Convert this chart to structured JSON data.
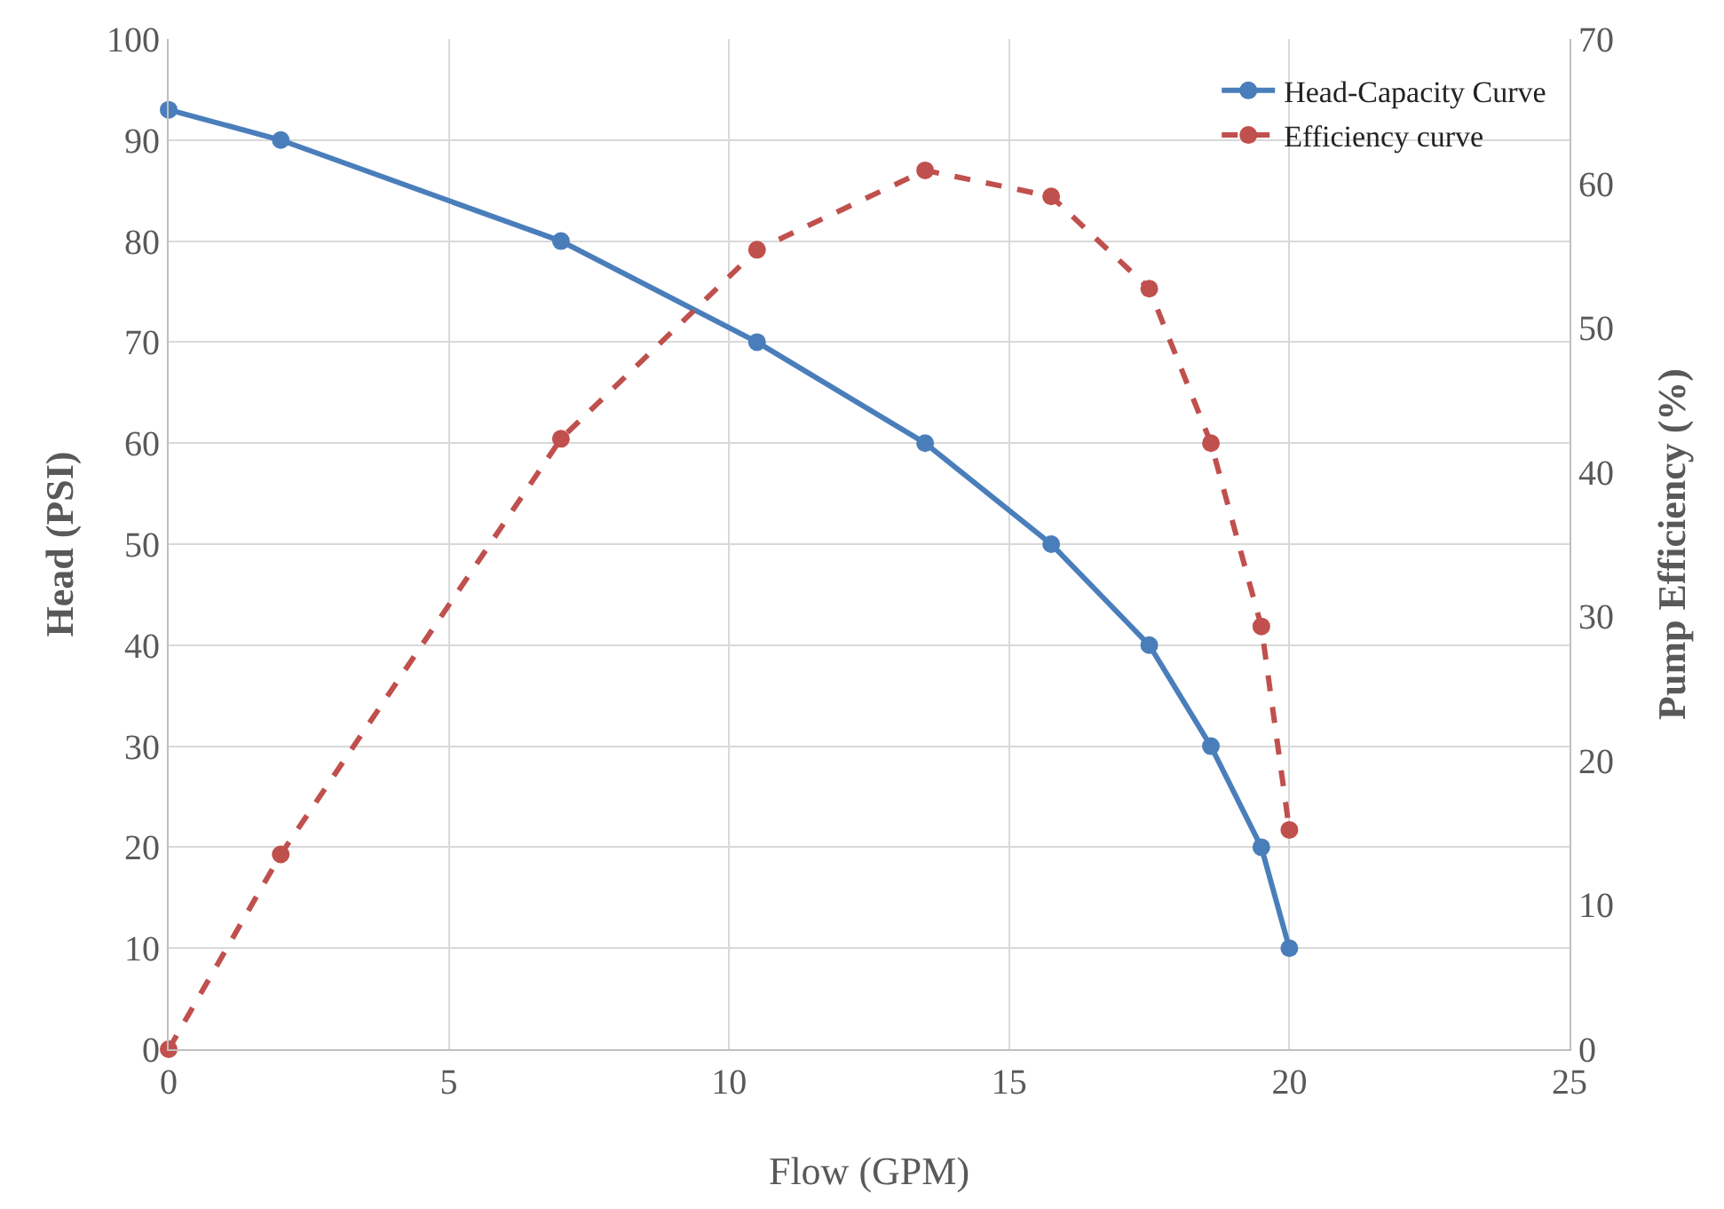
{
  "chart_data": {
    "type": "line",
    "xlabel": "Flow (GPM)",
    "ylabel": "Head (PSI)",
    "y2label": "Pump Efficiency (%)",
    "x": [
      0,
      2,
      7,
      10.5,
      13.5,
      15.75,
      17.5,
      18.6,
      19.5,
      20
    ],
    "series": [
      {
        "name": "Head-Capacity Curve",
        "color": "#4a7ebb",
        "line_style": "solid",
        "values": [
          93,
          90,
          80,
          70,
          60,
          50,
          40,
          30,
          20,
          10
        ]
      },
      {
        "name": "Efficiency curve",
        "color": "#c0504d",
        "line_style": "dashed",
        "axis": "y2",
        "values": [
          0,
          13.5,
          42.3,
          55.4,
          60.9,
          59.1,
          52.7,
          42,
          29.3,
          15.2
        ]
      }
    ],
    "xlim": [
      0,
      25
    ],
    "xticks": [
      0,
      5,
      10,
      15,
      20,
      25
    ],
    "ylim": [
      0,
      100
    ],
    "yticks": [
      0,
      10,
      20,
      30,
      40,
      50,
      60,
      70,
      80,
      90,
      100
    ],
    "y2lim": [
      0,
      70
    ],
    "y2ticks": [
      0,
      10,
      20,
      30,
      40,
      50,
      60,
      70
    ],
    "grid": true,
    "legend": "top right",
    "marker": "circle"
  }
}
